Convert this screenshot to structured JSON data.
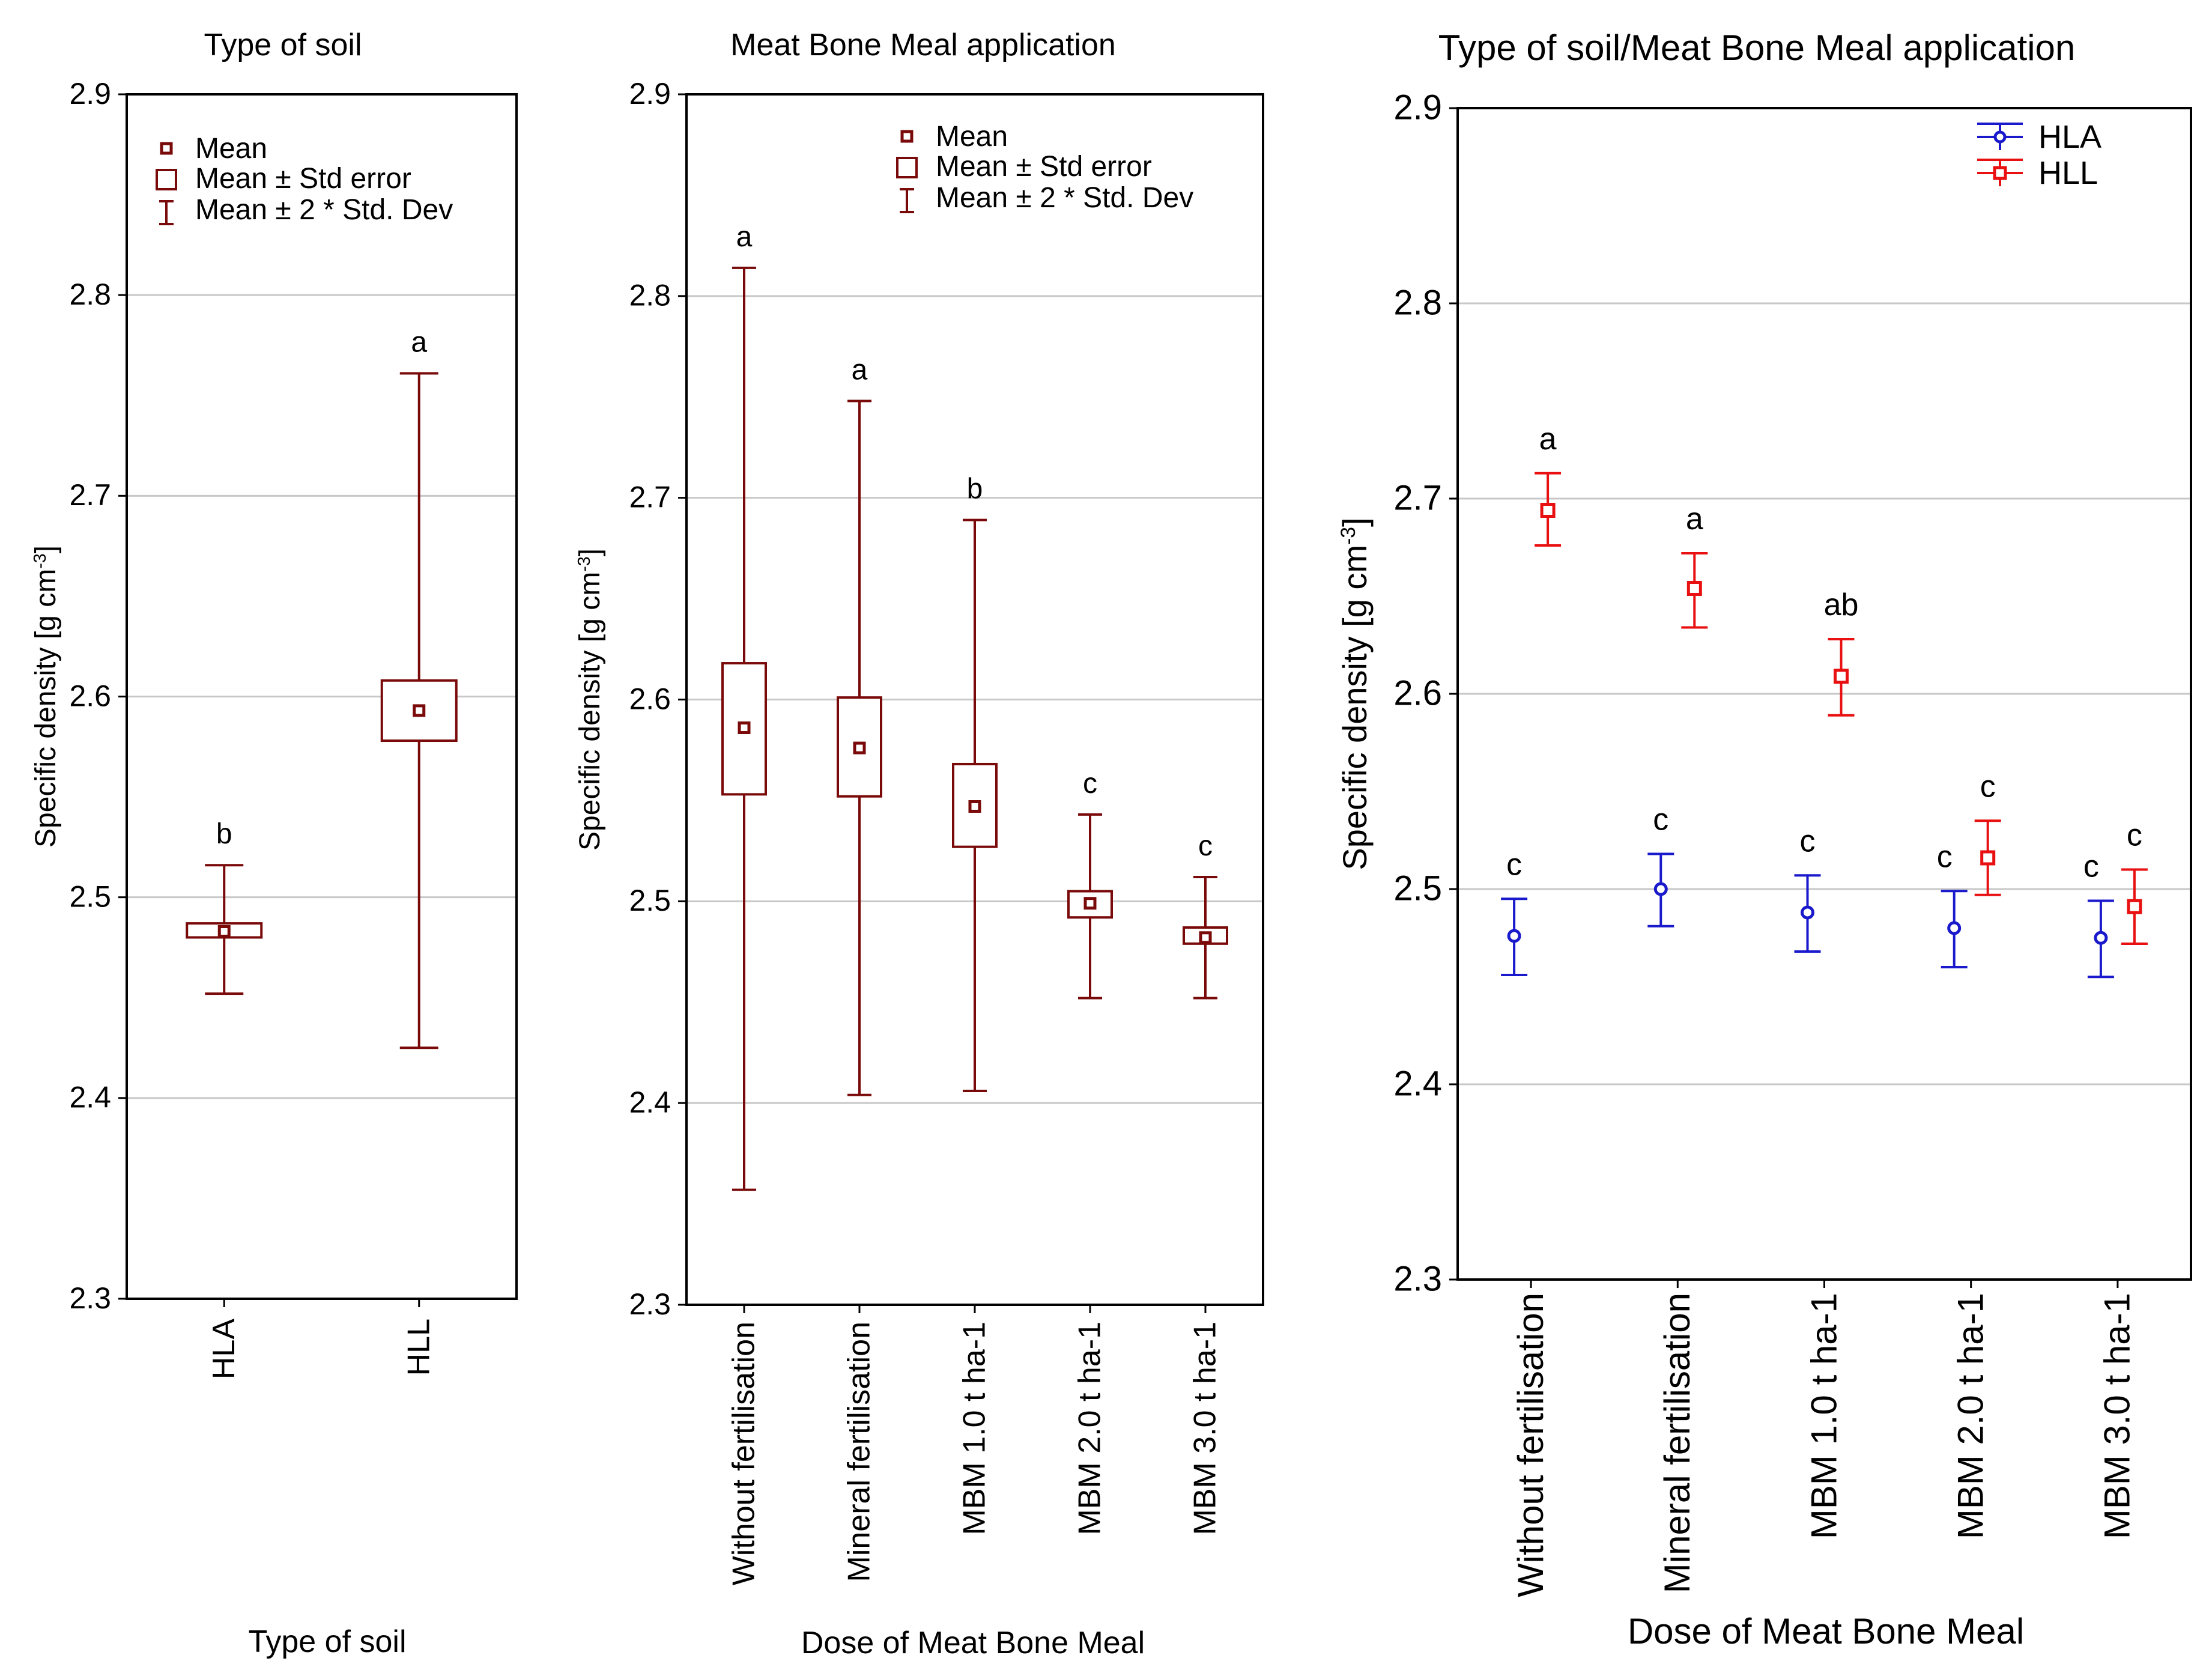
{
  "chart_data": [
    {
      "type": "box",
      "title": "Type of soil",
      "xlabel": "Type of soil",
      "ylabel": "Specific density [g cm",
      "ylabel_sup": "-3",
      "ylabel_end": "]",
      "ylim": [
        2.3,
        2.9
      ],
      "yticks": [
        "2.3",
        "2.4",
        "2.5",
        "2.6",
        "2.7",
        "2.8",
        "2.9"
      ],
      "legend": [
        "Mean",
        "Mean ± Std error",
        "Mean ± 2 * Std. Dev"
      ],
      "color": "#7a0a0a",
      "categories": [
        "HLA",
        "HLL"
      ],
      "mean": [
        2.483,
        2.593
      ],
      "se_low": [
        2.48,
        2.578
      ],
      "se_high": [
        2.487,
        2.608
      ],
      "sd_low": [
        2.452,
        2.425
      ],
      "sd_high": [
        2.516,
        2.761
      ],
      "letters": [
        "b",
        "a"
      ]
    },
    {
      "type": "box",
      "title": "Meat Bone Meal application",
      "xlabel": "Dose of Meat Bone Meal",
      "ylabel": "Specific density [g cm",
      "ylabel_sup": "-3",
      "ylabel_end": "]",
      "ylim": [
        2.3,
        2.9
      ],
      "yticks": [
        "2.3",
        "2.4",
        "2.5",
        "2.6",
        "2.7",
        "2.8",
        "2.9"
      ],
      "legend": [
        "Mean",
        "Mean ± Std error",
        "Mean ± 2 * Std. Dev"
      ],
      "color": "#7a0a0a",
      "categories": [
        "Without fertilisation",
        "Mineral fertilisation",
        "MBM 1.0 t ha-1",
        "MBM 2.0 t ha-1",
        "MBM 3.0 t ha-1"
      ],
      "mean": [
        2.586,
        2.576,
        2.547,
        2.499,
        2.482
      ],
      "se_low": [
        2.553,
        2.552,
        2.527,
        2.492,
        2.479
      ],
      "se_high": [
        2.618,
        2.601,
        2.568,
        2.505,
        2.487
      ],
      "sd_low": [
        2.357,
        2.404,
        2.406,
        2.452,
        2.452
      ],
      "sd_high": [
        2.814,
        2.748,
        2.689,
        2.543,
        2.512
      ],
      "letters": [
        "a",
        "a",
        "b",
        "c",
        "c"
      ]
    },
    {
      "type": "errorbar",
      "title": "Type of soil/Meat Bone Meal application",
      "xlabel": "Dose of Meat Bone Meal",
      "ylabel": "Specific density [g cm",
      "ylabel_sup": "-3",
      "ylabel_end": "]",
      "ylim": [
        2.3,
        2.9
      ],
      "yticks": [
        "2.3",
        "2.4",
        "2.5",
        "2.6",
        "2.7",
        "2.8",
        "2.9"
      ],
      "categories": [
        "Without fertilisation",
        "Mineral fertilisation",
        "MBM 1.0 t ha-1",
        "MBM 2.0 t ha-1",
        "MBM 3.0 t ha-1"
      ],
      "series": [
        {
          "name": "HLA",
          "color": "#1a1acc",
          "values": [
            2.476,
            2.5,
            2.488,
            2.48,
            2.475
          ],
          "low": [
            2.456,
            2.481,
            2.468,
            2.46,
            2.455
          ],
          "high": [
            2.495,
            2.518,
            2.507,
            2.499,
            2.494
          ],
          "letters": [
            "c",
            "c",
            "c",
            "c",
            "c"
          ]
        },
        {
          "name": "HLL",
          "color": "#e81010",
          "values": [
            2.694,
            2.654,
            2.609,
            2.516,
            2.491
          ],
          "low": [
            2.676,
            2.634,
            2.589,
            2.497,
            2.472
          ],
          "high": [
            2.713,
            2.672,
            2.628,
            2.535,
            2.51
          ],
          "letters": [
            "a",
            "a",
            "ab",
            "c",
            "c"
          ]
        }
      ]
    }
  ]
}
